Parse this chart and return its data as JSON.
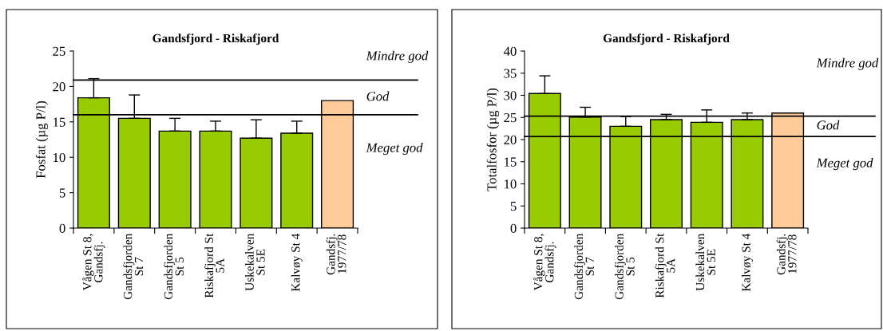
{
  "chart_data": [
    {
      "type": "bar",
      "title": "Gandsfjord - Riskafjord",
      "ylabel": "Fosfat (µg P/l)",
      "categories": [
        "Vågen St 8,\nGandsfj.",
        "Gandsfjorden\nSt 7",
        "Gandsfjorden\nSt 5",
        "Riskafjord St\n5A",
        "Uskekalven\nSt 5E",
        "Kalvøy St 4",
        "Gandsfj.\n1977/78"
      ],
      "values": [
        18.4,
        15.5,
        13.7,
        13.7,
        12.7,
        13.4,
        18.0
      ],
      "colors": [
        "#99cc00",
        "#99cc00",
        "#99cc00",
        "#99cc00",
        "#99cc00",
        "#99cc00",
        "#ffcc99"
      ],
      "errors": [
        [
          18.4,
          21.1
        ],
        [
          15.5,
          18.8
        ],
        [
          13.7,
          15.5
        ],
        [
          13.7,
          15.1
        ],
        [
          12.7,
          15.3
        ],
        [
          13.4,
          15.1
        ],
        null
      ],
      "ylim": [
        0,
        25
      ],
      "yticks": [
        0,
        5,
        10,
        15,
        20,
        25
      ],
      "ref_lines": [
        {
          "axis": "y",
          "value": 20.9
        },
        {
          "axis": "y",
          "value": 16.0
        }
      ],
      "annotations": [
        "Mindre god",
        "God",
        "Meget god"
      ],
      "grid": false,
      "legend": false
    },
    {
      "type": "bar",
      "title": "Gandsfjord - Riskafjord",
      "ylabel": "Totalfosfor (µg P/l)",
      "categories": [
        "Vågen St 8,\nGandsfj.",
        "Gandsfjorden\nSt 7",
        "Gandsfjorden\nSt 5",
        "Riskafjord St\n5A",
        "Uskekalven\nSt 5E",
        "Kalvøy St 4",
        "Gandsfj.\n1977/78"
      ],
      "values": [
        30.4,
        25.1,
        23.0,
        24.5,
        23.9,
        24.5,
        26.0
      ],
      "colors": [
        "#99cc00",
        "#99cc00",
        "#99cc00",
        "#99cc00",
        "#99cc00",
        "#99cc00",
        "#ffcc99"
      ],
      "errors": [
        [
          30.4,
          34.4
        ],
        [
          25.1,
          27.3
        ],
        [
          23.0,
          25.2
        ],
        [
          24.5,
          25.7
        ],
        [
          23.9,
          26.7
        ],
        [
          24.5,
          26.0
        ],
        null
      ],
      "ylim": [
        0,
        40
      ],
      "yticks": [
        0,
        5,
        10,
        15,
        20,
        25,
        30,
        35,
        40
      ],
      "ref_lines": [
        {
          "axis": "y",
          "value": 25.3
        },
        {
          "axis": "y",
          "value": 20.7
        }
      ],
      "annotations": [
        "Mindre god",
        "God",
        "Meget god"
      ],
      "grid": false,
      "legend": false
    }
  ]
}
